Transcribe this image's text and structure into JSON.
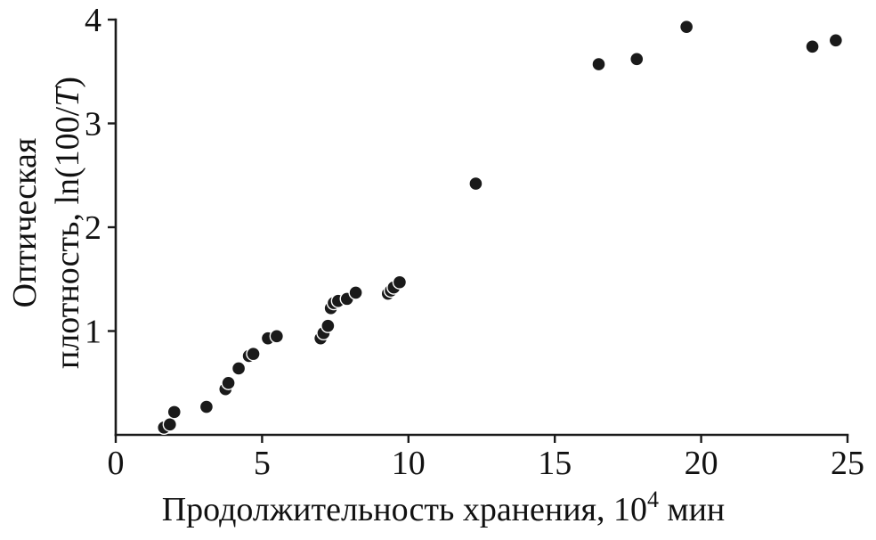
{
  "chart_data": {
    "type": "scatter",
    "title": "",
    "xlabel": {
      "main": "Продолжительность хранения, 10",
      "sup": "4",
      "end": " мин"
    },
    "ylabel": {
      "line1": "Оптическая",
      "line2_pre": "плотность, ln(100/",
      "line2_italic": "T",
      "line2_post": ")"
    },
    "xlim": [
      0,
      25
    ],
    "ylim": [
      0,
      4
    ],
    "xticks": [
      0,
      5,
      10,
      15,
      20,
      25
    ],
    "yticks": [
      1,
      2,
      3,
      4
    ],
    "grid": false,
    "legend": "none",
    "marker": "filled-circle",
    "marker_color": "#1a1a1a",
    "points": [
      [
        1.65,
        0.07
      ],
      [
        1.85,
        0.1
      ],
      [
        2.0,
        0.22
      ],
      [
        3.1,
        0.27
      ],
      [
        3.75,
        0.44
      ],
      [
        3.85,
        0.5
      ],
      [
        4.2,
        0.64
      ],
      [
        4.55,
        0.76
      ],
      [
        4.7,
        0.78
      ],
      [
        5.2,
        0.93
      ],
      [
        5.5,
        0.95
      ],
      [
        7.0,
        0.93
      ],
      [
        7.1,
        0.98
      ],
      [
        7.25,
        1.05
      ],
      [
        7.35,
        1.22
      ],
      [
        7.45,
        1.27
      ],
      [
        7.6,
        1.29
      ],
      [
        7.9,
        1.31
      ],
      [
        8.2,
        1.37
      ],
      [
        9.3,
        1.36
      ],
      [
        9.4,
        1.39
      ],
      [
        9.5,
        1.42
      ],
      [
        9.7,
        1.47
      ],
      [
        12.3,
        2.42
      ],
      [
        16.5,
        3.57
      ],
      [
        17.8,
        3.62
      ],
      [
        19.5,
        3.93
      ],
      [
        23.8,
        3.74
      ],
      [
        24.6,
        3.8
      ]
    ]
  }
}
